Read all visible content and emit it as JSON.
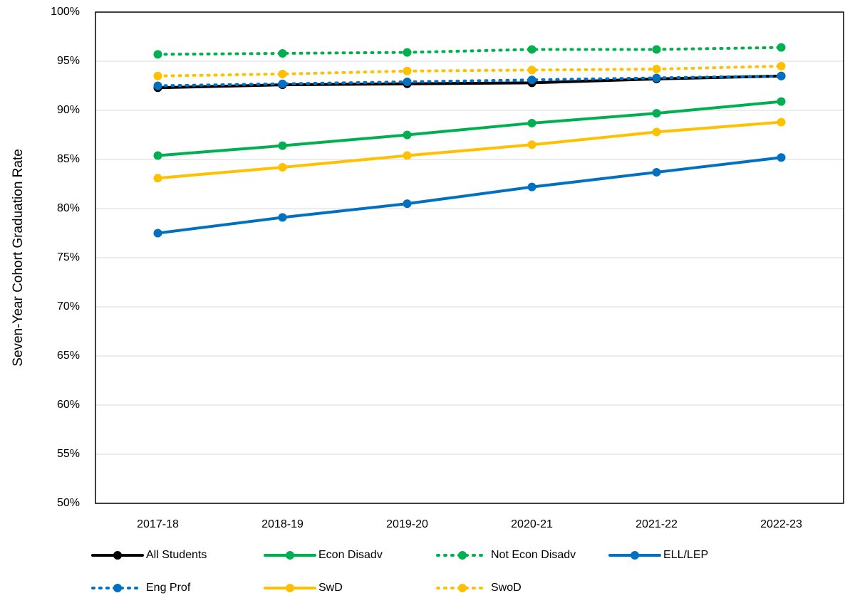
{
  "chart_data": {
    "type": "line",
    "y_label": "Seven-Year Cohort Graduation Rate",
    "categories": [
      "2017-18",
      "2018-19",
      "2019-20",
      "2020-21",
      "2021-22",
      "2022-23"
    ],
    "series": [
      {
        "name": "All Students",
        "color": "#000000",
        "style": "solid",
        "values": [
          92.3,
          92.6,
          92.7,
          92.8,
          93.2,
          93.5
        ]
      },
      {
        "name": "Econ Disadv",
        "color": "#00b050",
        "style": "solid",
        "values": [
          85.4,
          86.4,
          87.5,
          88.7,
          89.7,
          90.9
        ]
      },
      {
        "name": "Not Econ Disadv",
        "color": "#00b050",
        "style": "dotted",
        "values": [
          95.7,
          95.8,
          95.9,
          96.2,
          96.2,
          96.4
        ]
      },
      {
        "name": "ELL/LEP",
        "color": "#0070c0",
        "style": "solid",
        "values": [
          77.5,
          79.1,
          80.5,
          82.2,
          83.7,
          85.2
        ]
      },
      {
        "name": "Eng Prof",
        "color": "#0070c0",
        "style": "dotted",
        "values": [
          92.5,
          92.7,
          92.9,
          93.1,
          93.3,
          93.5
        ]
      },
      {
        "name": "SwD",
        "color": "#ffc000",
        "style": "solid",
        "values": [
          83.1,
          84.2,
          85.4,
          86.5,
          87.8,
          88.8
        ]
      },
      {
        "name": "SwoD",
        "color": "#ffc000",
        "style": "dotted",
        "values": [
          93.5,
          93.7,
          94.0,
          94.1,
          94.2,
          94.5
        ]
      }
    ],
    "ylim": [
      50,
      100
    ],
    "yticks": [
      {
        "value": 50,
        "label": "50%"
      },
      {
        "value": 55,
        "label": "55%"
      },
      {
        "value": 60,
        "label": "60%"
      },
      {
        "value": 65,
        "label": "65%"
      },
      {
        "value": 70,
        "label": "70%"
      },
      {
        "value": 75,
        "label": "75%"
      },
      {
        "value": 80,
        "label": "80%"
      },
      {
        "value": 85,
        "label": "85%"
      },
      {
        "value": 90,
        "label": "90%"
      },
      {
        "value": 95,
        "label": "95%"
      },
      {
        "value": 100,
        "label": "100%"
      }
    ],
    "grid": true,
    "legend": "bottom"
  }
}
